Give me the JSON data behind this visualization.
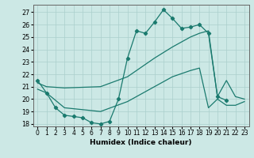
{
  "xlabel": "Humidex (Indice chaleur)",
  "bg_color": "#cce8e5",
  "grid_color": "#aacfcc",
  "line_color": "#1a7a6e",
  "ylim": [
    17.8,
    27.6
  ],
  "xlim": [
    -0.5,
    23.5
  ],
  "yticks": [
    18,
    19,
    20,
    21,
    22,
    23,
    24,
    25,
    26,
    27
  ],
  "xticks": [
    0,
    1,
    2,
    3,
    4,
    5,
    6,
    7,
    8,
    9,
    10,
    11,
    12,
    13,
    14,
    15,
    16,
    17,
    18,
    19,
    20,
    21,
    22,
    23
  ],
  "line1_x": [
    0,
    1,
    2,
    3,
    4,
    5,
    6,
    7,
    8,
    9,
    10,
    11,
    12,
    13,
    14,
    15,
    16,
    17,
    18,
    19,
    20,
    21
  ],
  "line1_y": [
    21.5,
    20.5,
    19.3,
    18.7,
    18.6,
    18.5,
    18.1,
    18.0,
    18.2,
    20.0,
    23.3,
    25.5,
    25.3,
    26.2,
    27.2,
    26.5,
    25.7,
    25.8,
    26.0,
    25.3,
    20.2,
    19.9
  ],
  "line2_x": [
    0,
    1,
    3,
    7,
    10,
    13,
    15,
    17,
    18,
    19,
    20,
    21,
    22,
    23
  ],
  "line2_y": [
    21.3,
    21.0,
    20.9,
    21.0,
    21.8,
    23.3,
    24.2,
    25.0,
    25.3,
    25.5,
    20.2,
    21.5,
    20.2,
    20.0
  ],
  "line3_x": [
    0,
    1,
    3,
    7,
    10,
    13,
    15,
    17,
    18,
    19,
    20,
    21,
    22,
    23
  ],
  "line3_y": [
    20.8,
    20.5,
    19.3,
    19.0,
    19.8,
    21.0,
    21.8,
    22.3,
    22.5,
    19.3,
    20.0,
    19.5,
    19.5,
    19.8
  ]
}
